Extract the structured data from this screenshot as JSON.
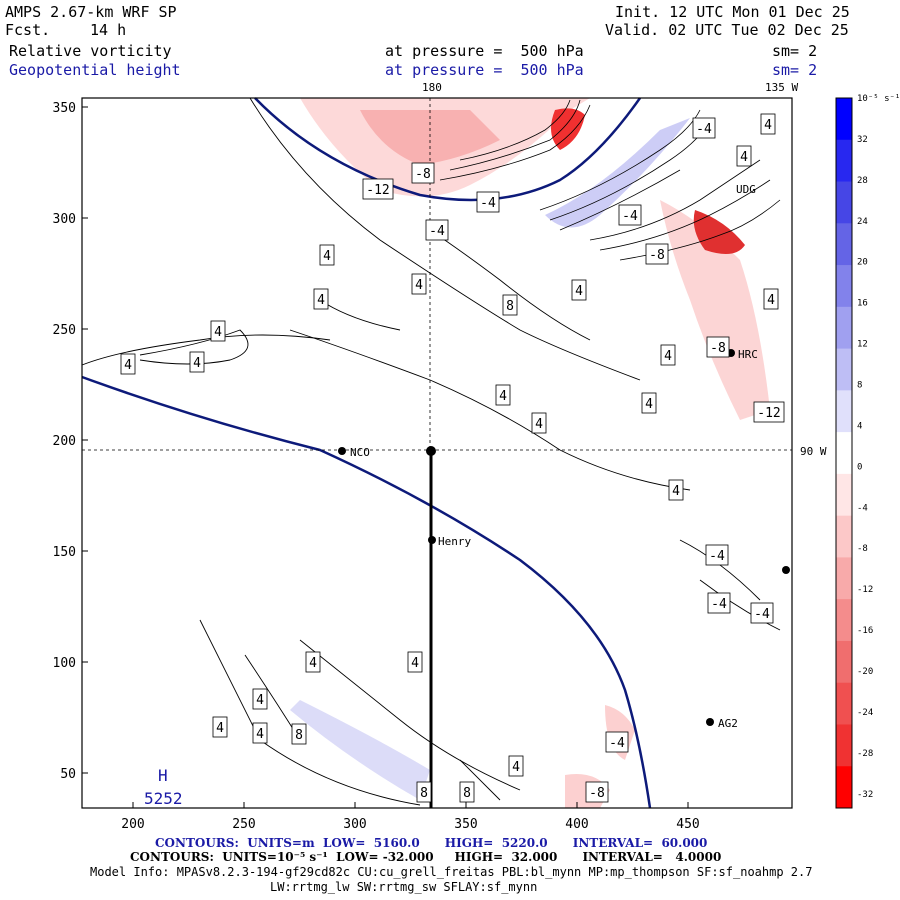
{
  "header": {
    "model": "AMPS 2.67-km WRF SP",
    "fcst_label": "Fcst.",
    "fcst_value": "14 h",
    "init": "Init. 12 UTC Mon 01 Dec 25",
    "valid": "Valid. 02 UTC Tue 02 Dec 25",
    "field1": "Relative vorticity",
    "field1_level": "at pressure =  500 hPa",
    "field1_sm": "sm= 2",
    "field2": "Geopotential height",
    "field2_level": "at pressure =  500 hPa",
    "field2_sm": "sm= 2"
  },
  "map": {
    "top_lon_label": "180",
    "topright_lon_label": "135 W",
    "right_lon_label": "90 W",
    "x_ticks": [
      "200",
      "250",
      "300",
      "350",
      "400",
      "450"
    ],
    "y_ticks": [
      "350",
      "300",
      "250",
      "200",
      "150",
      "100",
      "50"
    ],
    "stations": [
      {
        "name": "NCO"
      },
      {
        "name": "Henry"
      },
      {
        "name": "HRC"
      },
      {
        "name": "AG2"
      },
      {
        "name": "UDG"
      }
    ],
    "high_center": {
      "letter": "H",
      "value": "5252"
    },
    "contour_labels": [
      "4",
      "4",
      "4",
      "4",
      "4",
      "4",
      "4",
      "4",
      "4",
      "4",
      "4",
      "4",
      "4",
      "4",
      "4",
      "4",
      "4",
      "4",
      "4",
      "4",
      "4",
      "8",
      "8",
      "8",
      "8",
      "-4",
      "-4",
      "-4",
      "-4",
      "-4",
      "-4",
      "-4",
      "-4",
      "-8",
      "-8",
      "-8",
      "-8",
      "-12",
      "-12"
    ]
  },
  "colorbar": {
    "unit": "10⁻⁵ s⁻¹",
    "labels": [
      "32",
      "28",
      "24",
      "20",
      "16",
      "12",
      "8",
      "4",
      "0",
      "-4",
      "-8",
      "-12",
      "-16",
      "-20",
      "-24",
      "-28",
      "-32"
    ],
    "colors": [
      "#0000ff",
      "#2828f0",
      "#4646e6",
      "#6464e6",
      "#8282eb",
      "#a0a0f0",
      "#bebef5",
      "#e0e0fb",
      "#ffffff",
      "#ffe6e6",
      "#fcc8c8",
      "#f8aaaa",
      "#f48c8c",
      "#f06e6e",
      "#f05050",
      "#f03232",
      "#ff0000"
    ]
  },
  "footer": {
    "line1": "CONTOURS:  UNITS=m  LOW=  5160.0      HIGH=  5220.0      INTERVAL=  60.000",
    "line2": "CONTOURS:  UNITS=10⁻⁵ s⁻¹  LOW= -32.000     HIGH=  32.000      INTERVAL=   4.0000",
    "line3": "Model Info: MPASv8.2.3-194-gf29cd82c CU:cu_grell_freitas PBL:bl_mynn MP:mp_thompson SF:sf_noahmp 2.7",
    "line4": "LW:rrtmg_lw SW:rrtmg_sw SFLAY:sf_mynn"
  }
}
